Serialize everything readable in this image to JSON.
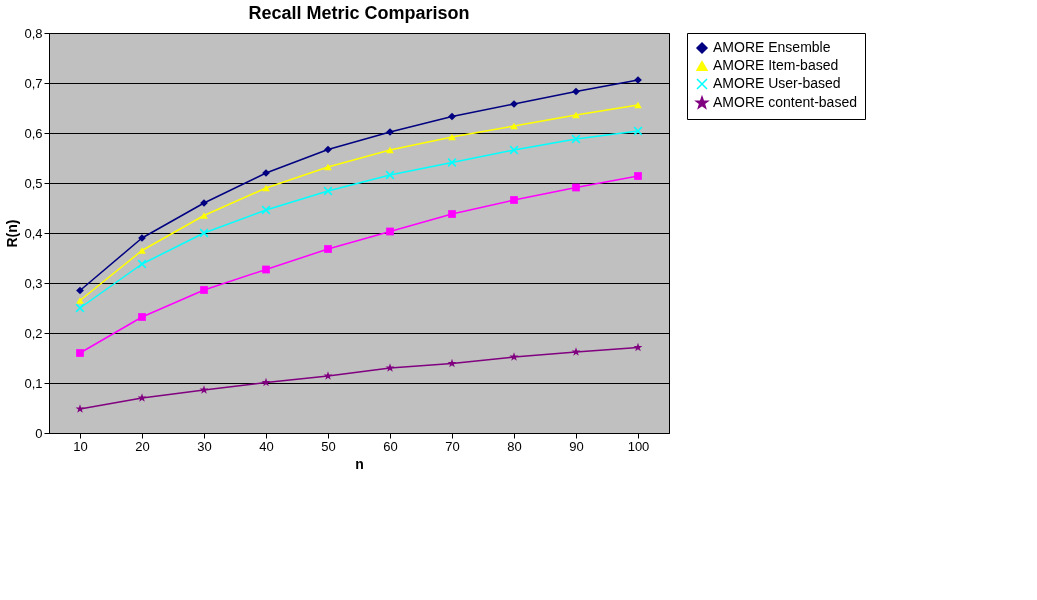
{
  "chart_data": {
    "type": "line",
    "title": "Recall Metric Comparison",
    "xlabel": "n",
    "ylabel": "R(n)",
    "categories": [
      "10",
      "20",
      "30",
      "40",
      "50",
      "60",
      "70",
      "80",
      "90",
      "100"
    ],
    "series": [
      {
        "name": "AMORE Ensemble",
        "color": "#000080",
        "marker": "diamond",
        "values": [
          0.285,
          0.39,
          0.46,
          0.52,
          0.567,
          0.602,
          0.633,
          0.658,
          0.683,
          0.706
        ]
      },
      {
        "color": "#ff00ff",
        "marker": "square",
        "values": [
          0.16,
          0.232,
          0.286,
          0.327,
          0.368,
          0.403,
          0.438,
          0.466,
          0.491,
          0.514
        ]
      },
      {
        "name": "AMORE Item-based",
        "color": "#ffff00",
        "marker": "triangle",
        "values": [
          0.265,
          0.365,
          0.435,
          0.49,
          0.532,
          0.566,
          0.592,
          0.614,
          0.636,
          0.656
        ]
      },
      {
        "name": "AMORE User-based",
        "color": "#00ffff",
        "marker": "cross",
        "values": [
          0.25,
          0.338,
          0.4,
          0.446,
          0.484,
          0.516,
          0.541,
          0.566,
          0.588,
          0.604
        ]
      },
      {
        "name": "AMORE content-based",
        "color": "#800080",
        "marker": "star",
        "values": [
          0.048,
          0.07,
          0.086,
          0.101,
          0.114,
          0.13,
          0.139,
          0.152,
          0.162,
          0.171
        ]
      }
    ],
    "ylim": [
      0,
      0.8
    ],
    "yticks": [
      0,
      {
        "value": 0.1,
        "label": "0,1"
      },
      {
        "value": 0.2,
        "label": "0,2"
      },
      {
        "value": 0.3,
        "label": "0,3"
      },
      {
        "value": 0.4,
        "label": "0,4"
      },
      {
        "value": 0.5,
        "label": "0,5"
      },
      {
        "value": 0.6,
        "label": "0,6"
      },
      {
        "value": 0.7,
        "label": "0,7"
      },
      {
        "value": 0.8,
        "label": "0,8"
      }
    ],
    "grid": "y",
    "legend": "right",
    "line_style": "solid"
  }
}
